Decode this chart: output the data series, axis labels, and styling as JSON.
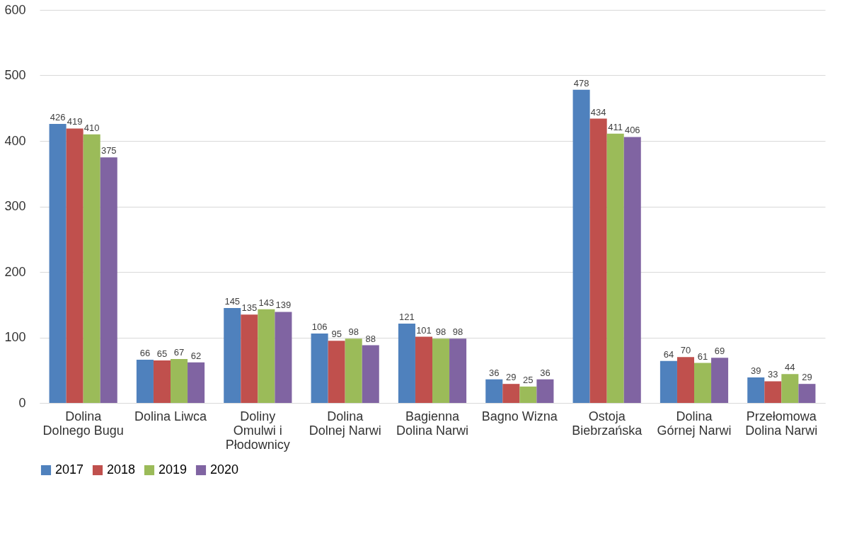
{
  "chart_data": {
    "type": "bar",
    "categories": [
      "Dolina Dolnego Bugu",
      "Dolina Liwca",
      "Doliny Omulwi i Płodownicy",
      "Dolina Dolnej Narwi",
      "Bagienna Dolina Narwi",
      "Bagno Wizna",
      "Ostoja Biebrzańska",
      "Dolina Górnej Narwi",
      "Przełomowa Dolina Narwi"
    ],
    "series": [
      {
        "name": "2017",
        "color": "#4f81bd",
        "values": [
          426,
          66,
          145,
          106,
          121,
          36,
          478,
          64,
          39
        ]
      },
      {
        "name": "2018",
        "color": "#c0504d",
        "values": [
          419,
          65,
          135,
          95,
          101,
          29,
          434,
          70,
          33
        ]
      },
      {
        "name": "2019",
        "color": "#9bbb59",
        "values": [
          410,
          67,
          143,
          98,
          98,
          25,
          411,
          61,
          44
        ]
      },
      {
        "name": "2020",
        "color": "#8064a2",
        "values": [
          375,
          62,
          139,
          88,
          98,
          36,
          406,
          69,
          29
        ]
      }
    ],
    "ylim": [
      0,
      600
    ],
    "yticks": [
      0,
      100,
      200,
      300,
      400,
      500,
      600
    ],
    "grid": "y",
    "legend": "bottom",
    "data_labels": true
  }
}
